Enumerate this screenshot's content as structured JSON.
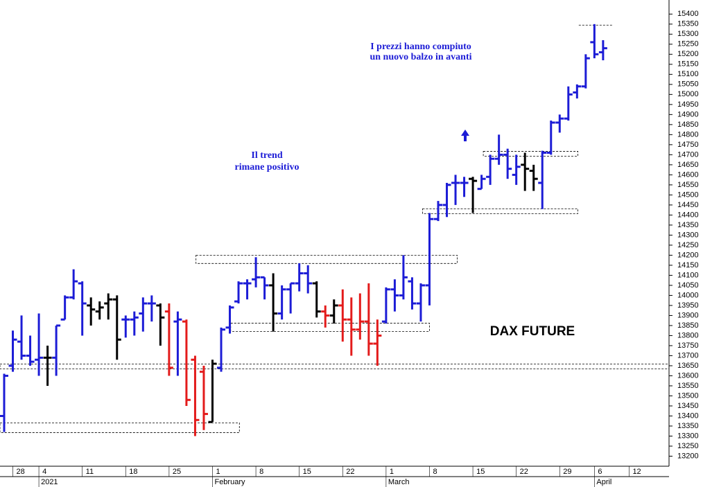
{
  "chart_data": {
    "type": "ohlc",
    "title": "DAX FUTURE",
    "annotations": [
      "I prezzi hanno compiuto",
      "un nuovo balzo in avanti",
      "Il trend",
      "rimane positivo"
    ],
    "categories": [
      null,
      "28",
      null,
      null,
      "4",
      null,
      null,
      null,
      null,
      "11",
      null,
      null,
      null,
      null,
      "18",
      null,
      null,
      null,
      null,
      "25",
      null,
      null,
      null,
      null,
      "1",
      null,
      null,
      null,
      null,
      "8",
      null,
      null,
      null,
      null,
      "15",
      null,
      null,
      null,
      null,
      "22",
      null,
      null,
      null,
      null,
      "1",
      null,
      null,
      null,
      null,
      "8",
      null,
      null,
      null,
      null,
      "15",
      null,
      null,
      null,
      null,
      "22",
      null,
      null,
      null,
      null,
      "29",
      null,
      null,
      null,
      "6",
      null,
      null,
      null,
      "12"
    ],
    "months": [
      null,
      null,
      null,
      null,
      "2021",
      null,
      null,
      null,
      null,
      null,
      null,
      null,
      null,
      null,
      null,
      null,
      null,
      null,
      null,
      null,
      null,
      null,
      null,
      null,
      "February",
      null,
      null,
      null,
      null,
      null,
      null,
      null,
      null,
      null,
      null,
      null,
      null,
      null,
      null,
      null,
      null,
      null,
      null,
      null,
      "March",
      null,
      null,
      null,
      null,
      null,
      null,
      null,
      null,
      null,
      null,
      null,
      null,
      null,
      null,
      null,
      null,
      null,
      null,
      null,
      null,
      null,
      null,
      null,
      "April",
      null,
      null,
      null,
      null
    ],
    "open": [
      13400,
      13650,
      13770,
      13700,
      13680,
      13690,
      13690,
      13880,
      13990,
      14060,
      13950,
      13920,
      13960,
      13980,
      13880,
      13880,
      13910,
      13960,
      13950,
      13920,
      13870,
      13870,
      13680,
      13620,
      13370,
      13640,
      13840,
      13970,
      14060,
      14080,
      14090,
      14050,
      13910,
      14030,
      14060,
      14110,
      14060,
      13920,
      13900,
      13950,
      13880,
      13830,
      13870,
      13760,
      13870,
      14030,
      14000,
      14070,
      13960,
      14050,
      14380,
      14450,
      14560,
      14560,
      14580,
      14530,
      14590,
      14680,
      14700,
      14600,
      14650,
      14620,
      14560,
      14710,
      14860,
      14880,
      15010,
      15040,
      15260,
      15210,
      null,
      null,
      null
    ],
    "high": [
      13610,
      13825,
      13900,
      13800,
      13910,
      13750,
      13850,
      14000,
      14130,
      14070,
      13990,
      13970,
      14010,
      14000,
      13900,
      13920,
      13990,
      14000,
      13960,
      13960,
      13920,
      13880,
      13700,
      13650,
      13680,
      13840,
      13950,
      14070,
      14080,
      14190,
      14090,
      14110,
      14050,
      14060,
      14160,
      14150,
      14070,
      13950,
      13980,
      14030,
      13990,
      14010,
      14060,
      13880,
      14040,
      14080,
      14200,
      14090,
      14060,
      14410,
      14470,
      14560,
      14600,
      14590,
      14590,
      14600,
      14700,
      14800,
      14730,
      14700,
      14710,
      14650,
      14720,
      14870,
      14900,
      15040,
      15050,
      15200,
      15350,
      15270,
      null,
      null,
      null
    ],
    "low": [
      13320,
      13620,
      13680,
      13650,
      13600,
      13550,
      13600,
      13880,
      13980,
      13800,
      13850,
      13880,
      13880,
      13680,
      13790,
      13800,
      13820,
      13870,
      13750,
      13600,
      13600,
      13450,
      13300,
      13330,
      13370,
      13620,
      13810,
      13960,
      13980,
      14040,
      13980,
      13820,
      13880,
      13910,
      14020,
      14010,
      13890,
      13840,
      13860,
      13770,
      13700,
      13780,
      13700,
      13650,
      13860,
      13920,
      13980,
      13930,
      13870,
      13950,
      14370,
      14390,
      14450,
      14490,
      14410,
      14530,
      14550,
      14650,
      14580,
      14550,
      14520,
      14520,
      14430,
      14700,
      14810,
      14870,
      14980,
      15030,
      15180,
      15170,
      null,
      null,
      null
    ],
    "close": [
      13600,
      13780,
      13700,
      13670,
      13690,
      13690,
      13850,
      13990,
      14070,
      13960,
      13930,
      13940,
      13980,
      13780,
      13880,
      13890,
      13960,
      13960,
      13890,
      13640,
      13880,
      13480,
      13380,
      13410,
      13660,
      13830,
      13940,
      14060,
      14060,
      14090,
      14050,
      13910,
      14030,
      14060,
      14110,
      14060,
      13920,
      13900,
      13950,
      13880,
      13830,
      13870,
      13760,
      13800,
      14030,
      14000,
      14090,
      13960,
      14050,
      14380,
      14450,
      14550,
      14560,
      14560,
      14570,
      14580,
      14680,
      14700,
      14630,
      14640,
      14630,
      14580,
      14710,
      14860,
      14880,
      15000,
      15040,
      15180,
      15200,
      15230,
      null,
      null,
      null
    ],
    "colors": [
      "#1c1cd6",
      "#1c1cd6",
      "#1c1cd6",
      "#1c1cd6",
      "#1c1cd6",
      "#000000",
      "#1c1cd6",
      "#1c1cd6",
      "#1c1cd6",
      "#1c1cd6",
      "#000000",
      "#000000",
      "#000000",
      "#000000",
      "#1c1cd6",
      "#1c1cd6",
      "#1c1cd6",
      "#1c1cd6",
      "#000000",
      "#e31b1b",
      "#1c1cd6",
      "#e31b1b",
      "#e31b1b",
      "#e31b1b",
      "#000000",
      "#1c1cd6",
      "#1c1cd6",
      "#1c1cd6",
      "#1c1cd6",
      "#1c1cd6",
      "#1c1cd6",
      "#000000",
      "#1c1cd6",
      "#1c1cd6",
      "#1c1cd6",
      "#1c1cd6",
      "#000000",
      "#e31b1b",
      "#000000",
      "#e31b1b",
      "#e31b1b",
      "#e31b1b",
      "#e31b1b",
      "#e31b1b",
      "#1c1cd6",
      "#1c1cd6",
      "#1c1cd6",
      "#1c1cd6",
      "#1c1cd6",
      "#1c1cd6",
      "#1c1cd6",
      "#1c1cd6",
      "#1c1cd6",
      "#1c1cd6",
      "#000000",
      "#1c1cd6",
      "#1c1cd6",
      "#1c1cd6",
      "#1c1cd6",
      "#1c1cd6",
      "#000000",
      "#000000",
      "#1c1cd6",
      "#1c1cd6",
      "#1c1cd6",
      "#1c1cd6",
      "#1c1cd6",
      "#1c1cd6",
      "#1c1cd6",
      "#1c1cd6",
      null,
      null,
      null
    ],
    "zones": [
      {
        "from": -0.5,
        "to": 27.1,
        "low": 13317,
        "high": 13366
      },
      {
        "from": 22.1,
        "to": 52.2,
        "low": 14159,
        "high": 14200
      },
      {
        "from": 26.1,
        "to": 49.0,
        "low": 13821,
        "high": 13862
      },
      {
        "from": -0.5,
        "to": 76.6,
        "low": 13634,
        "high": 13659
      },
      {
        "from": 48.2,
        "to": 66.1,
        "low": 14407,
        "high": 14431
      },
      {
        "from": 55.2,
        "to": 66.1,
        "low": 14693,
        "high": 14717
      },
      {
        "from": 66.2,
        "to": 70.05,
        "low": 15345,
        "high": 15345
      }
    ],
    "ylim": [
      13150,
      15470
    ],
    "yticks": [
      13200,
      13250,
      13300,
      13350,
      13400,
      13450,
      13500,
      13550,
      13600,
      13650,
      13700,
      13750,
      13800,
      13850,
      13900,
      13950,
      14000,
      14050,
      14100,
      14150,
      14200,
      14250,
      14300,
      14350,
      14400,
      14450,
      14500,
      14550,
      14600,
      14650,
      14700,
      14750,
      14800,
      14850,
      14900,
      14950,
      15000,
      15050,
      15100,
      15150,
      15200,
      15250,
      15300,
      15350,
      15400
    ]
  }
}
